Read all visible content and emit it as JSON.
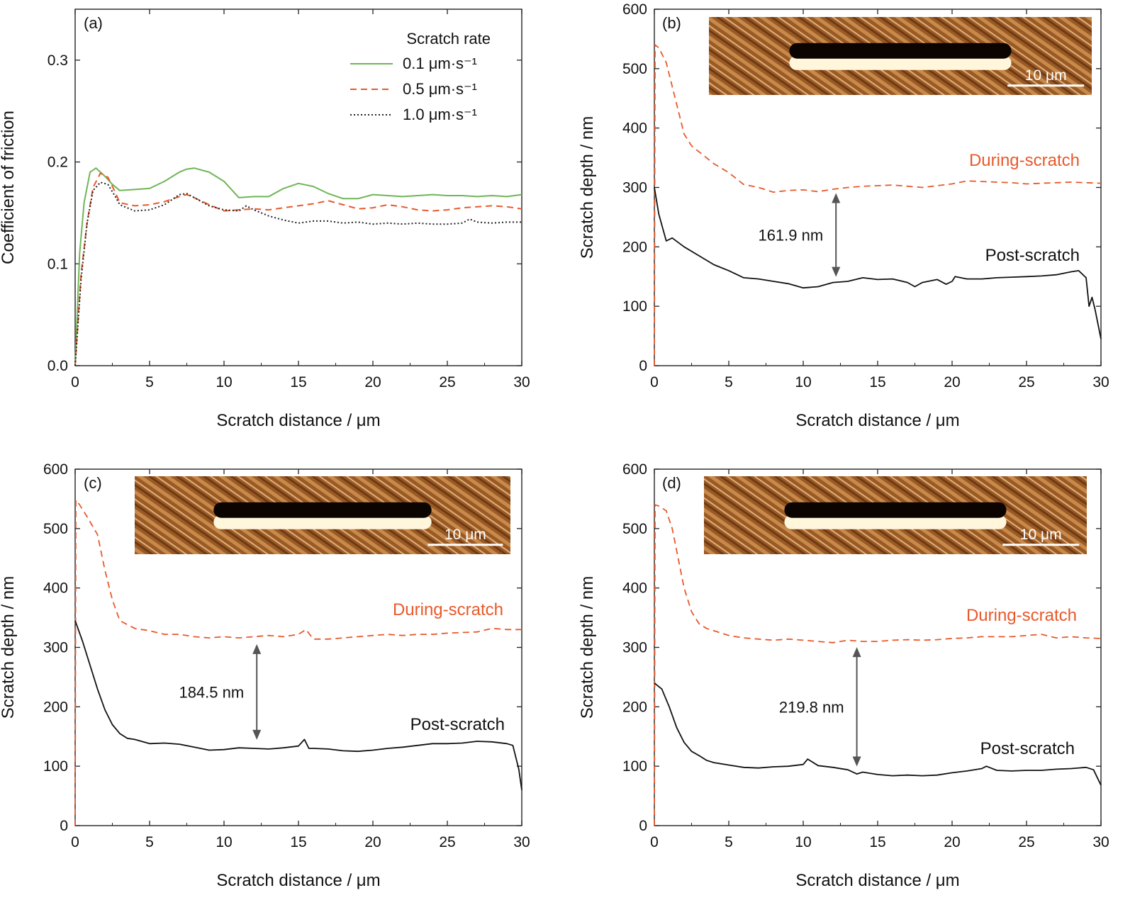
{
  "chart_data": [
    {
      "panel": "(a)",
      "type": "line",
      "xlabel": "Scratch distance / μm",
      "ylabel": "Coefficient of friction",
      "xlim": [
        0,
        30
      ],
      "ylim": [
        0,
        0.35
      ],
      "x_ticks": [
        "0",
        "5",
        "10",
        "15",
        "20",
        "25",
        "30"
      ],
      "y_ticks": [
        "0.0",
        "0.1",
        "0.2",
        "0.3"
      ],
      "legend_title": "Scratch rate",
      "legend_position": "top-right",
      "series": [
        {
          "name": "0.1 μm·s⁻¹",
          "color": "#6fb557",
          "style": "solid",
          "x": [
            0,
            0.3,
            0.6,
            1.0,
            1.4,
            2.0,
            2.5,
            3,
            4,
            5,
            6,
            7,
            7.5,
            8,
            9,
            10,
            11,
            12,
            13,
            14,
            15,
            16,
            17,
            18,
            19,
            20,
            21,
            22,
            23,
            24,
            25,
            26,
            27,
            28,
            29,
            30
          ],
          "y": [
            0.0,
            0.11,
            0.16,
            0.19,
            0.194,
            0.186,
            0.178,
            0.172,
            0.173,
            0.174,
            0.181,
            0.19,
            0.193,
            0.194,
            0.19,
            0.181,
            0.165,
            0.166,
            0.166,
            0.174,
            0.179,
            0.176,
            0.169,
            0.164,
            0.164,
            0.168,
            0.167,
            0.166,
            0.167,
            0.168,
            0.167,
            0.167,
            0.166,
            0.167,
            0.166,
            0.168
          ]
        },
        {
          "name": "0.5 μm·s⁻¹",
          "color": "#e8592b",
          "style": "dashed",
          "x": [
            0,
            0.4,
            0.8,
            1.2,
            1.7,
            2.2,
            2.7,
            3,
            4,
            5,
            6,
            7,
            7.5,
            8,
            9,
            10,
            11,
            12,
            13,
            14,
            15,
            16,
            17,
            18,
            19,
            20,
            21,
            22,
            23,
            24,
            25,
            26,
            27,
            28,
            29,
            30
          ],
          "y": [
            0.0,
            0.09,
            0.14,
            0.175,
            0.189,
            0.185,
            0.17,
            0.16,
            0.157,
            0.158,
            0.161,
            0.166,
            0.168,
            0.165,
            0.158,
            0.152,
            0.153,
            0.154,
            0.153,
            0.155,
            0.157,
            0.159,
            0.162,
            0.158,
            0.154,
            0.155,
            0.158,
            0.156,
            0.153,
            0.152,
            0.153,
            0.155,
            0.156,
            0.157,
            0.156,
            0.154
          ]
        },
        {
          "name": "1.0 μm·s⁻¹",
          "color": "#222222",
          "style": "dotted",
          "x": [
            0,
            0.4,
            0.8,
            1.2,
            1.7,
            2.2,
            2.7,
            3,
            4,
            5,
            6,
            7,
            7.5,
            8,
            9,
            10,
            11,
            11.5,
            12,
            13,
            14,
            15,
            16,
            17,
            18,
            19,
            20,
            21,
            22,
            23,
            24,
            25,
            26,
            26.5,
            27,
            28,
            29,
            30
          ],
          "y": [
            0.0,
            0.085,
            0.14,
            0.172,
            0.18,
            0.178,
            0.166,
            0.158,
            0.152,
            0.153,
            0.158,
            0.168,
            0.169,
            0.165,
            0.157,
            0.153,
            0.152,
            0.157,
            0.153,
            0.147,
            0.143,
            0.14,
            0.142,
            0.142,
            0.14,
            0.141,
            0.139,
            0.14,
            0.139,
            0.14,
            0.139,
            0.139,
            0.14,
            0.144,
            0.141,
            0.14,
            0.141,
            0.141
          ]
        }
      ]
    },
    {
      "panel": "(b)",
      "type": "line",
      "xlabel": "Scratch distance / μm",
      "ylabel": "Scratch depth / nm",
      "xlim": [
        0,
        30
      ],
      "ylim": [
        0,
        600
      ],
      "x_ticks": [
        "0",
        "5",
        "10",
        "15",
        "20",
        "25",
        "30"
      ],
      "y_ticks": [
        "0",
        "100",
        "200",
        "300",
        "400",
        "500",
        "600"
      ],
      "inset_scale_bar": "10 μm",
      "annotation_gap": "161.9 nm",
      "gap_x": 12.2,
      "gap_from": 140,
      "gap_to": 300,
      "series": [
        {
          "name": "During-scratch",
          "color": "#e8592b",
          "style": "dashed",
          "x": [
            0,
            0.05,
            0.3,
            0.8,
            1.5,
            2.0,
            2.5,
            3,
            4,
            5,
            6,
            7,
            8,
            9,
            10,
            11,
            12,
            13,
            14,
            15,
            16,
            17,
            18,
            19,
            20,
            21,
            22,
            23,
            24,
            25,
            26,
            27,
            28,
            29,
            30
          ],
          "y": [
            0,
            540,
            535,
            510,
            440,
            390,
            370,
            360,
            340,
            325,
            305,
            300,
            292,
            295,
            296,
            293,
            297,
            300,
            302,
            303,
            304,
            302,
            300,
            303,
            306,
            311,
            310,
            309,
            308,
            306,
            307,
            308,
            309,
            308,
            307
          ]
        },
        {
          "name": "Post-scratch",
          "color": "#111111",
          "style": "solid",
          "x": [
            0,
            0.3,
            0.8,
            1.2,
            2,
            3,
            4,
            5,
            6,
            7,
            8,
            9,
            10,
            11,
            12,
            13,
            14,
            15,
            16,
            17,
            17.5,
            18,
            19,
            19.6,
            20,
            20.2,
            21,
            22,
            23,
            24,
            25,
            26,
            27,
            28,
            28.5,
            29,
            29.2,
            29.4,
            29.6,
            30
          ],
          "y": [
            300,
            255,
            210,
            215,
            200,
            185,
            170,
            160,
            148,
            146,
            142,
            138,
            131,
            133,
            140,
            142,
            148,
            145,
            146,
            140,
            133,
            140,
            145,
            137,
            142,
            150,
            146,
            146,
            148,
            149,
            150,
            151,
            153,
            158,
            160,
            148,
            100,
            115,
            95,
            45
          ]
        }
      ]
    },
    {
      "panel": "(c)",
      "type": "line",
      "xlabel": "Scratch distance / μm",
      "ylabel": "Scratch depth / nm",
      "xlim": [
        0,
        30
      ],
      "ylim": [
        0,
        600
      ],
      "x_ticks": [
        "0",
        "5",
        "10",
        "15",
        "20",
        "25",
        "30"
      ],
      "y_ticks": [
        "0",
        "100",
        "200",
        "300",
        "400",
        "500",
        "600"
      ],
      "inset_scale_bar": "10 μm",
      "annotation_gap": "184.5 nm",
      "gap_x": 12.2,
      "gap_from": 135,
      "gap_to": 315,
      "series": [
        {
          "name": "During-scratch",
          "color": "#e8592b",
          "style": "dashed",
          "x": [
            0,
            0.05,
            0.3,
            0.8,
            1.5,
            2.0,
            2.5,
            3,
            4,
            5,
            6,
            7,
            8,
            9,
            10,
            11,
            12,
            13,
            14,
            15,
            15.5,
            16,
            17,
            18,
            19,
            20,
            21,
            22,
            23,
            24,
            25,
            26,
            27,
            28,
            29,
            30
          ],
          "y": [
            0,
            548,
            540,
            520,
            490,
            430,
            380,
            345,
            332,
            328,
            322,
            322,
            318,
            316,
            318,
            316,
            318,
            320,
            318,
            322,
            330,
            314,
            314,
            316,
            318,
            320,
            322,
            320,
            322,
            322,
            324,
            325,
            326,
            332,
            330,
            330
          ]
        },
        {
          "name": "Post-scratch",
          "color": "#111111",
          "style": "solid",
          "x": [
            0,
            0.5,
            1,
            1.5,
            2,
            2.5,
            3,
            3.5,
            4,
            5,
            6,
            7,
            8,
            9,
            10,
            11,
            12,
            13,
            14,
            15,
            15.4,
            15.7,
            16,
            17,
            18,
            19,
            20,
            21,
            22,
            23,
            24,
            25,
            26,
            27,
            28,
            29,
            29.4,
            29.8,
            30
          ],
          "y": [
            345,
            310,
            270,
            230,
            195,
            170,
            155,
            147,
            145,
            138,
            139,
            137,
            132,
            127,
            128,
            131,
            130,
            129,
            131,
            134,
            145,
            130,
            130,
            129,
            126,
            125,
            127,
            130,
            132,
            135,
            138,
            138,
            139,
            142,
            141,
            138,
            135,
            95,
            60
          ]
        }
      ]
    },
    {
      "panel": "(d)",
      "type": "line",
      "xlabel": "Scratch distance / μm",
      "ylabel": "Scratch depth / nm",
      "xlim": [
        0,
        30
      ],
      "ylim": [
        0,
        600
      ],
      "x_ticks": [
        "0",
        "5",
        "10",
        "15",
        "20",
        "25",
        "30"
      ],
      "y_ticks": [
        "0",
        "100",
        "200",
        "300",
        "400",
        "500",
        "600"
      ],
      "inset_scale_bar": "10 μm",
      "annotation_gap": "219.8 nm",
      "gap_x": 13.6,
      "gap_from": 90,
      "gap_to": 310,
      "series": [
        {
          "name": "During-scratch",
          "color": "#e8592b",
          "style": "dashed",
          "x": [
            0,
            0.05,
            0.3,
            0.8,
            1.2,
            1.6,
            2.0,
            2.5,
            3,
            3.5,
            4,
            5,
            6,
            7,
            8,
            9,
            10,
            11,
            12,
            13,
            14,
            15,
            16,
            17,
            18,
            19,
            20,
            21,
            22,
            23,
            24,
            25,
            26,
            27,
            28,
            29,
            30
          ],
          "y": [
            0,
            540,
            538,
            530,
            500,
            450,
            400,
            360,
            340,
            332,
            328,
            320,
            316,
            314,
            312,
            314,
            312,
            310,
            308,
            312,
            310,
            310,
            312,
            313,
            312,
            313,
            315,
            316,
            318,
            318,
            318,
            320,
            322,
            316,
            318,
            316,
            315
          ]
        },
        {
          "name": "Post-scratch",
          "color": "#111111",
          "style": "solid",
          "x": [
            0,
            0.5,
            1,
            1.5,
            2,
            2.5,
            3,
            3.5,
            4,
            5,
            6,
            7,
            8,
            9,
            10,
            10.3,
            11,
            12,
            13,
            13.6,
            14,
            15,
            16,
            17,
            18,
            19,
            20,
            21,
            22,
            22.3,
            23,
            24,
            25,
            26,
            27,
            28,
            29,
            29.5,
            30
          ],
          "y": [
            240,
            230,
            200,
            165,
            140,
            125,
            118,
            110,
            106,
            102,
            98,
            97,
            99,
            100,
            103,
            112,
            101,
            98,
            94,
            87,
            90,
            86,
            84,
            85,
            84,
            85,
            89,
            92,
            96,
            100,
            93,
            92,
            93,
            93,
            95,
            96,
            98,
            94,
            68
          ]
        }
      ]
    }
  ]
}
